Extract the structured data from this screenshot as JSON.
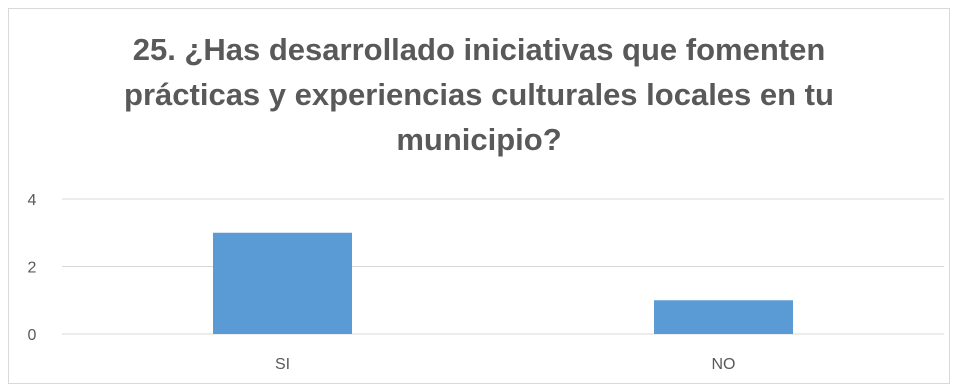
{
  "chart_data": {
    "type": "bar",
    "title_lines": [
      "25. ¿Has desarrollado iniciativas que fomenten",
      "prácticas y experiencias culturales locales en tu",
      "municipio?"
    ],
    "categories": [
      "SI",
      "NO"
    ],
    "values": [
      3,
      1
    ],
    "ylim": [
      0,
      4
    ],
    "yticks": [
      "0",
      "2",
      "4"
    ],
    "grid": true,
    "bar_color": "#5B9BD5",
    "grid_color": "#d9d9d9"
  }
}
